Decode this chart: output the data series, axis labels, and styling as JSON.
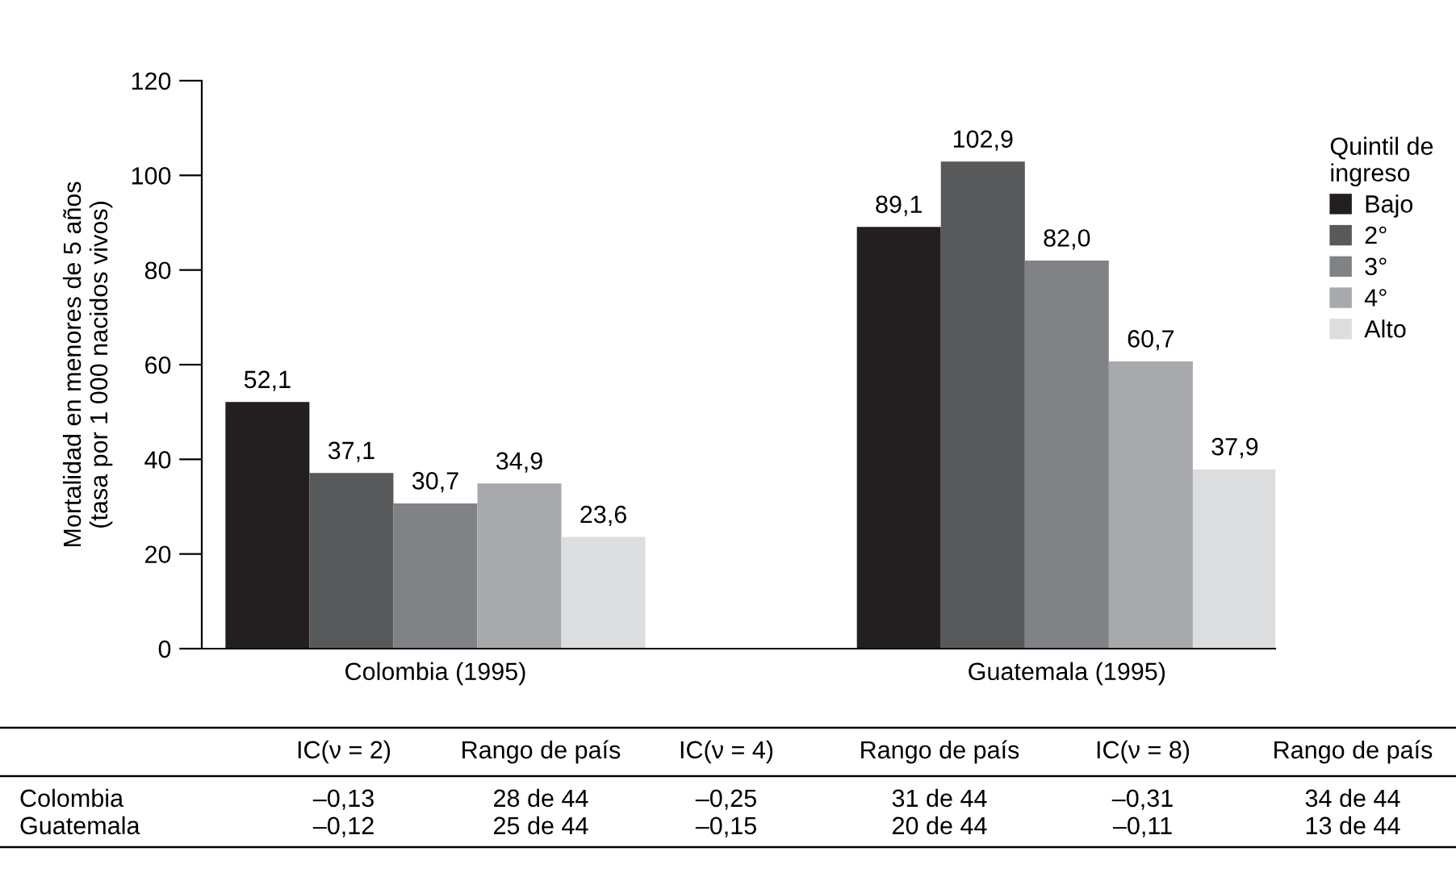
{
  "chart_data": {
    "type": "bar",
    "ylabel": "Mortalidad en menores de 5 años\n(tasa por 1 000 nacidos vivos)",
    "legend_title": "Quintil de\ningreso",
    "categories": [
      "Colombia (1995)",
      "Guatemala (1995)"
    ],
    "series": [
      {
        "name": "Bajo",
        "color": "#231f20",
        "values": [
          52.1,
          89.1
        ],
        "value_labels": [
          "52,1",
          "89,1"
        ]
      },
      {
        "name": "2°",
        "color": "#58595b",
        "values": [
          37.1,
          102.9
        ],
        "value_labels": [
          "37,1",
          "102,9"
        ]
      },
      {
        "name": "3°",
        "color": "#808285",
        "values": [
          30.7,
          82.0
        ],
        "value_labels": [
          "30,7",
          "82,0"
        ]
      },
      {
        "name": "4°",
        "color": "#a7a9ac",
        "values": [
          34.9,
          60.7
        ],
        "value_labels": [
          "34,9",
          "60,7"
        ]
      },
      {
        "name": "Alto",
        "color": "#dcddde",
        "values": [
          23.6,
          37.9
        ],
        "value_labels": [
          "23,6",
          "37,9"
        ]
      }
    ],
    "ylim": [
      0,
      120
    ],
    "yticks": [
      0,
      20,
      40,
      60,
      80,
      100,
      120
    ],
    "grid": false,
    "legend": "right",
    "annotations": [
      "IC(ν = 2)",
      "Rango de país",
      "IC(ν = 4)",
      "Rango de país",
      "IC(ν = 8)",
      "Rango de país",
      "Colombia",
      "–0,13",
      "28 de 44",
      "–0,25",
      "31 de 44",
      "–0,31",
      "34 de 44",
      "Guatemala",
      "–0,12",
      "25 de 44",
      "–0,15",
      "20 de 44",
      "–0,11",
      "13 de 44"
    ]
  }
}
